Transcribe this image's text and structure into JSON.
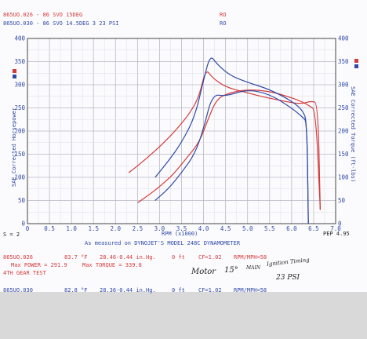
{
  "chart_data": {
    "type": "line",
    "run_labels": [
      {
        "id": "865UO.026",
        "desc": "86 SVO 15DEG",
        "tag": "RO",
        "color": "#d53a3a"
      },
      {
        "id": "865UO.030",
        "desc": "86 SVO 14.5DEG 3 23 PSI",
        "tag": "RO",
        "color": "#3049a8"
      }
    ],
    "x_axis": {
      "label": "RPM (x1000)",
      "min": 0,
      "max": 7,
      "ticks": [
        "0",
        "0.5",
        "1.0",
        "1.5",
        "2.0",
        "2.5",
        "3.0",
        "3.5",
        "4.0",
        "4.5",
        "5.0",
        "5.5",
        "6.0",
        "6.5",
        "7.0"
      ]
    },
    "y_left": {
      "label": "SAE Corrected Horsepower",
      "min": 0,
      "max": 400,
      "ticks": [
        "0",
        "50",
        "100",
        "150",
        "200",
        "250",
        "300",
        "350",
        "400"
      ]
    },
    "y_right": {
      "label": "SAE Corrected Torque (ft-lbs)",
      "min": 0,
      "max": 400,
      "ticks": [
        "0",
        "50",
        "100",
        "150",
        "200",
        "250",
        "300",
        "350",
        "400"
      ]
    },
    "grid": true,
    "smoothing": "S = 2",
    "pep": "PEP 4.95",
    "footer": "As measured on DYNOJET'S MODEL 248C DYNAMOMETER",
    "series": [
      {
        "name": "865UO.026",
        "metric": "hp",
        "color": "#d53a3a",
        "x": [
          2.5,
          2.8,
          3.0,
          3.3,
          3.6,
          3.9,
          4.1,
          4.3,
          4.6,
          5.0,
          5.5,
          5.9,
          6.2,
          6.4,
          6.55,
          6.65
        ],
        "y": [
          45,
          65,
          80,
          105,
          140,
          175,
          225,
          270,
          283,
          290,
          286,
          275,
          265,
          255,
          245,
          30
        ]
      },
      {
        "name": "865UO.026",
        "metric": "torque",
        "color": "#d53a3a",
        "x": [
          2.3,
          2.7,
          3.1,
          3.4,
          3.7,
          3.9,
          4.05,
          4.2,
          4.5,
          4.9,
          5.3,
          5.8,
          6.2,
          6.45,
          6.6,
          6.65
        ],
        "y": [
          110,
          140,
          175,
          205,
          240,
          275,
          335,
          315,
          295,
          285,
          275,
          265,
          258,
          265,
          260,
          30
        ]
      },
      {
        "name": "865UO.030",
        "metric": "hp",
        "color": "#3049a8",
        "x": [
          2.9,
          3.2,
          3.5,
          3.8,
          4.0,
          4.2,
          4.5,
          5.0,
          5.5,
          6.0,
          6.25,
          6.35,
          6.38
        ],
        "y": [
          50,
          75,
          110,
          150,
          205,
          280,
          275,
          290,
          280,
          250,
          230,
          220,
          0
        ]
      },
      {
        "name": "865UO.030",
        "metric": "torque",
        "color": "#3049a8",
        "x": [
          2.9,
          3.2,
          3.5,
          3.8,
          4.0,
          4.15,
          4.3,
          4.6,
          5.0,
          5.5,
          6.0,
          6.25,
          6.35,
          6.38
        ],
        "y": [
          100,
          135,
          175,
          230,
          310,
          365,
          345,
          320,
          305,
          290,
          265,
          245,
          220,
          0
        ]
      }
    ]
  },
  "info": {
    "run1": {
      "id": "865UO.026",
      "temp": "83.7 °F",
      "baro": "28.46-0.44 in.Hg.",
      "alt": "0 ft",
      "cf": "CF=1.02",
      "mode": "RPM/MPH=58",
      "max_power": "Max POWER = 291.9",
      "max_torque": "Max TORQUE = 339.8",
      "gear": "4TH GEAR TEST"
    },
    "run2": {
      "id": "865UO.030",
      "temp": "82.8 °F",
      "baro": "28.36-0.44 in.Hg.",
      "alt": "0 ft",
      "cf": "CF=1.02",
      "mode": "RPM/MPH=58"
    },
    "handwritten": {
      "line1a": "Motor",
      "line1b": "15°",
      "line1c": "Ignition Timing",
      "line1d": "MAIN",
      "line2": "23 PSI"
    }
  }
}
